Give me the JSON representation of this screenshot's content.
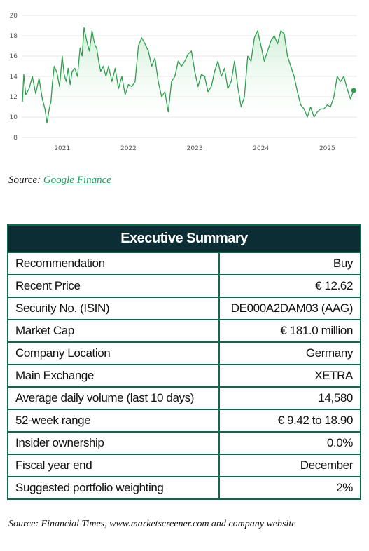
{
  "chart_data": {
    "type": "area",
    "x_ticks": [
      "2021",
      "2022",
      "2023",
      "2024",
      "2025"
    ],
    "y_ticks": [
      8,
      10,
      12,
      14,
      16,
      18,
      20
    ],
    "ylim": [
      8,
      20
    ],
    "xlim": [
      2020.4,
      2025.45
    ],
    "grid": "horizontal",
    "x": [
      2020.4,
      2020.42,
      2020.45,
      2020.5,
      2020.55,
      2020.6,
      2020.65,
      2020.7,
      2020.74,
      2020.77,
      2020.81,
      2020.83,
      2020.85,
      2020.88,
      2020.92,
      2020.96,
      2021.0,
      2021.03,
      2021.06,
      2021.09,
      2021.12,
      2021.15,
      2021.19,
      2021.23,
      2021.27,
      2021.3,
      2021.33,
      2021.37,
      2021.41,
      2021.45,
      2021.48,
      2021.5,
      2021.52,
      2021.55,
      2021.58,
      2021.62,
      2021.66,
      2021.7,
      2021.75,
      2021.8,
      2021.85,
      2021.9,
      2021.95,
      2022.0,
      2022.05,
      2022.1,
      2022.15,
      2022.2,
      2022.25,
      2022.3,
      2022.35,
      2022.4,
      2022.45,
      2022.5,
      2022.55,
      2022.6,
      2022.65,
      2022.7,
      2022.75,
      2022.8,
      2022.85,
      2022.9,
      2022.95,
      2023.0,
      2023.05,
      2023.1,
      2023.15,
      2023.2,
      2023.25,
      2023.3,
      2023.35,
      2023.4,
      2023.45,
      2023.5,
      2023.55,
      2023.6,
      2023.65,
      2023.7,
      2023.75,
      2023.8,
      2023.85,
      2023.9,
      2023.95,
      2024.0,
      2024.05,
      2024.1,
      2024.15,
      2024.2,
      2024.25,
      2024.3,
      2024.35,
      2024.4,
      2024.45,
      2024.5,
      2024.55,
      2024.6,
      2024.65,
      2024.7,
      2024.75,
      2024.8,
      2024.85,
      2024.9,
      2024.95,
      2025.0,
      2025.05,
      2025.1,
      2025.15,
      2025.2,
      2025.25,
      2025.3,
      2025.35,
      2025.4
    ],
    "y": [
      11.5,
      14.2,
      12.2,
      12.8,
      14.0,
      12.3,
      13.8,
      11.8,
      10.8,
      9.4,
      11.0,
      11.5,
      13.2,
      15.0,
      14.4,
      13.0,
      16.0,
      14.2,
      13.5,
      14.8,
      13.2,
      14.5,
      14.8,
      14.0,
      16.8,
      16.0,
      18.8,
      17.5,
      16.5,
      18.5,
      17.5,
      17.0,
      16.8,
      15.5,
      14.5,
      15.0,
      14.0,
      15.0,
      13.5,
      14.8,
      12.8,
      14.0,
      12.2,
      13.2,
      13.0,
      13.5,
      17.0,
      17.8,
      17.2,
      16.5,
      15.0,
      15.8,
      13.5,
      12.0,
      12.5,
      10.5,
      13.5,
      14.0,
      15.5,
      15.0,
      15.5,
      16.2,
      16.5,
      14.5,
      13.0,
      14.2,
      14.0,
      12.5,
      13.0,
      14.5,
      15.5,
      14.0,
      14.8,
      12.8,
      13.5,
      15.5,
      13.0,
      11.0,
      12.0,
      16.0,
      15.5,
      17.8,
      18.5,
      17.0,
      15.5,
      16.5,
      17.5,
      18.0,
      17.2,
      18.5,
      18.2,
      16.0,
      15.0,
      14.0,
      12.5,
      11.2,
      10.8,
      10.0,
      11.0,
      10.0,
      10.5,
      10.8,
      10.8,
      11.2,
      11.0,
      12.0,
      14.0,
      13.5,
      14.0,
      12.8,
      11.8,
      12.62
    ]
  },
  "source_1": {
    "prefix": "Source:",
    "link": "Google Finance"
  },
  "summary": {
    "title": "Executive Summary",
    "rows": [
      {
        "label": "Recommendation",
        "value": "Buy"
      },
      {
        "label": "Recent Price",
        "value": "€ 12.62"
      },
      {
        "label": "Security No. (ISIN)",
        "value": "DE000A2DAM03 (AAG)"
      },
      {
        "label": "Market Cap",
        "value": "€ 181.0 million"
      },
      {
        "label": "Company Location",
        "value": "Germany"
      },
      {
        "label": "Main Exchange",
        "value": "XETRA"
      },
      {
        "label": "Average daily volume (last 10 days)",
        "value": "14,580"
      },
      {
        "label": "52-week range",
        "value": "€ 9.42 to 18.90"
      },
      {
        "label": "Insider ownership",
        "value": "0.0%"
      },
      {
        "label": "Fiscal year end",
        "value": "December"
      },
      {
        "label": "Suggested portfolio weighting",
        "value": "2%"
      }
    ]
  },
  "source_2": {
    "text": "Source: Financial Times, www.marketscreener.com and company website"
  },
  "colors": {
    "line": "#2e9e4f",
    "area": "#d8f0dc",
    "header_bg": "#0d2d35",
    "border": "#0d6b4a"
  }
}
